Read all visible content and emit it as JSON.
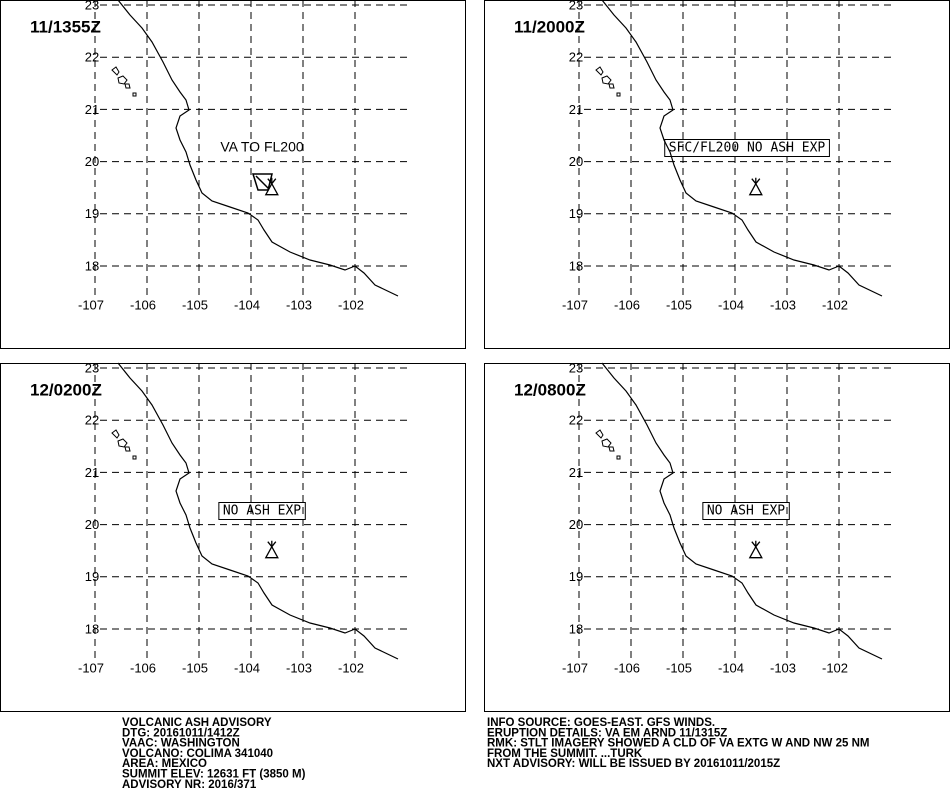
{
  "panels": [
    {
      "time": "11/1355Z",
      "annotation": "VA TO FL200",
      "annotation_boxed": false
    },
    {
      "time": "11/2000Z",
      "annotation": "SFC/FL200 NO ASH EXP",
      "annotation_boxed": true
    },
    {
      "time": "12/0200Z",
      "annotation": "NO ASH EXP",
      "annotation_boxed": true
    },
    {
      "time": "12/0800Z",
      "annotation": "NO ASH EXP",
      "annotation_boxed": true
    }
  ],
  "lon_ticks": [
    -107,
    -106,
    -105,
    -104,
    -103,
    -102
  ],
  "lat_ticks": [
    18,
    19,
    20,
    21,
    22,
    23
  ],
  "advisory_left": [
    "VOLCANIC ASH ADVISORY",
    "DTG: 20161011/1412Z",
    "VAAC: WASHINGTON",
    "VOLCANO: COLIMA 341040",
    "AREA: MEXICO",
    "SUMMIT ELEV: 12631 FT (3850 M)",
    "ADVISORY NR: 2016/371"
  ],
  "advisory_right": [
    "INFO SOURCE: GOES-EAST. GFS WINDS.",
    "ERUPTION DETAILS: VA EM ARND 11/1315Z",
    "RMK: STLT IMAGERY SHOWED A CLD OF VA EXTG W AND NW 25 NM",
    "FROM THE SUMMIT. ...TURK",
    "NXT ADVISORY: WILL BE ISSUED BY 20161011/2015Z"
  ]
}
